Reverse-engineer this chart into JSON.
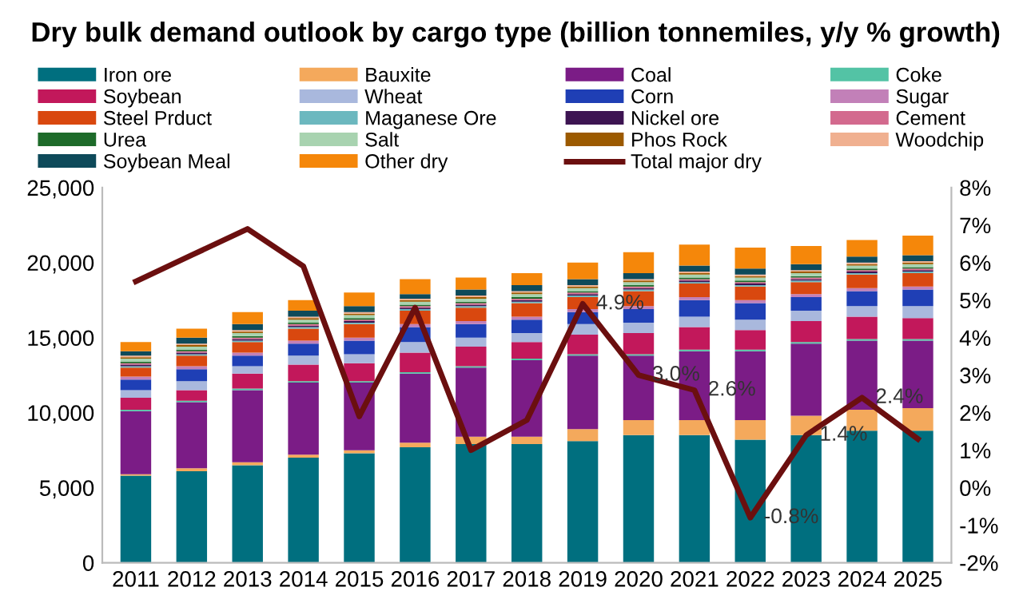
{
  "chart_data": {
    "type": "bar",
    "title": "Dry bulk demand outlook by cargo type (billion tonnemiles, y/y % growth)",
    "categories": [
      "2011",
      "2012",
      "2013",
      "2014",
      "2015",
      "2016",
      "2017",
      "2018",
      "2019",
      "2020",
      "2021",
      "2022",
      "2023",
      "2024",
      "2025"
    ],
    "stacked": true,
    "legend": "top",
    "grid": false,
    "ylim": [
      0,
      25000
    ],
    "yticks": [
      {
        "value": 0,
        "label": "0"
      },
      {
        "value": 5000,
        "label": "5,000"
      },
      {
        "value": 10000,
        "label": "10,000"
      },
      {
        "value": 15000,
        "label": "15,000"
      },
      {
        "value": 20000,
        "label": "20,000"
      },
      {
        "value": 25000,
        "label": "25,000"
      }
    ],
    "y2lim": [
      -2,
      8
    ],
    "y2ticks": [
      {
        "value": -2,
        "label": "-2%"
      },
      {
        "value": -1,
        "label": "-1%"
      },
      {
        "value": 0,
        "label": "0%"
      },
      {
        "value": 1,
        "label": "1%"
      },
      {
        "value": 2,
        "label": "2%"
      },
      {
        "value": 3,
        "label": "3%"
      },
      {
        "value": 4,
        "label": "4%"
      },
      {
        "value": 5,
        "label": "5%"
      },
      {
        "value": 6,
        "label": "6%"
      },
      {
        "value": 7,
        "label": "7%"
      },
      {
        "value": 8,
        "label": "8%"
      }
    ],
    "series": [
      {
        "name": "Iron ore",
        "color": "#006f7f",
        "values": [
          5800,
          6100,
          6500,
          7000,
          7300,
          7700,
          7900,
          7900,
          8100,
          8500,
          8500,
          8200,
          8500,
          8800,
          8800
        ]
      },
      {
        "name": "Bauxite",
        "color": "#f4a95c",
        "values": [
          100,
          200,
          200,
          200,
          200,
          300,
          500,
          500,
          800,
          1000,
          1000,
          1300,
          1300,
          1400,
          1500
        ]
      },
      {
        "name": "Coal",
        "color": "#7b1c86",
        "values": [
          4200,
          4400,
          4800,
          4800,
          4500,
          4600,
          4600,
          5100,
          4900,
          4300,
          4600,
          4600,
          4800,
          4600,
          4500
        ]
      },
      {
        "name": "Coke",
        "color": "#53c3a5",
        "values": [
          100,
          100,
          100,
          100,
          100,
          100,
          100,
          100,
          100,
          100,
          100,
          100,
          100,
          100,
          100
        ]
      },
      {
        "name": "Soybean",
        "color": "#c2185b",
        "values": [
          800,
          700,
          1000,
          1100,
          1200,
          1300,
          1300,
          1100,
          1300,
          1400,
          1500,
          1300,
          1400,
          1500,
          1400
        ]
      },
      {
        "name": "Wheat",
        "color": "#a9b8dd",
        "values": [
          500,
          600,
          500,
          600,
          600,
          700,
          600,
          600,
          700,
          700,
          700,
          700,
          700,
          700,
          800
        ]
      },
      {
        "name": "Corn",
        "color": "#1f3fb5",
        "values": [
          700,
          800,
          700,
          800,
          900,
          1000,
          900,
          900,
          800,
          900,
          1100,
          1100,
          900,
          1000,
          1100
        ]
      },
      {
        "name": "Sugar",
        "color": "#c280b8",
        "values": [
          200,
          200,
          200,
          200,
          200,
          200,
          200,
          200,
          200,
          200,
          200,
          200,
          200,
          200,
          200
        ]
      },
      {
        "name": "Steel Prduct",
        "color": "#d9480f",
        "values": [
          600,
          700,
          700,
          800,
          900,
          900,
          900,
          900,
          800,
          1000,
          900,
          900,
          800,
          900,
          900
        ]
      },
      {
        "name": "Maganese Ore",
        "color": "#6cb8bf",
        "values": [
          100,
          100,
          100,
          100,
          100,
          100,
          100,
          100,
          100,
          100,
          100,
          100,
          100,
          100,
          100
        ]
      },
      {
        "name": "Nickel ore",
        "color": "#3d1452",
        "values": [
          100,
          100,
          100,
          100,
          100,
          100,
          100,
          100,
          100,
          100,
          100,
          100,
          100,
          100,
          100
        ]
      },
      {
        "name": "Cement",
        "color": "#d36a8e",
        "values": [
          100,
          100,
          100,
          100,
          100,
          100,
          100,
          100,
          100,
          100,
          100,
          100,
          100,
          100,
          100
        ]
      },
      {
        "name": "Urea",
        "color": "#1e6b2a",
        "values": [
          100,
          100,
          100,
          100,
          100,
          100,
          100,
          100,
          100,
          100,
          100,
          100,
          100,
          100,
          100
        ]
      },
      {
        "name": "Salt",
        "color": "#a8d3b0",
        "values": [
          200,
          200,
          200,
          200,
          200,
          200,
          200,
          200,
          200,
          200,
          200,
          200,
          200,
          200,
          200
        ]
      },
      {
        "name": "Phos Rock",
        "color": "#9c5a00",
        "values": [
          100,
          100,
          100,
          100,
          100,
          100,
          100,
          100,
          100,
          100,
          100,
          100,
          100,
          100,
          100
        ]
      },
      {
        "name": "Woodchip",
        "color": "#f0b090",
        "values": [
          100,
          100,
          100,
          100,
          100,
          100,
          100,
          100,
          100,
          100,
          100,
          100,
          100,
          100,
          100
        ]
      },
      {
        "name": "Soybean Meal",
        "color": "#0e4a5a",
        "values": [
          300,
          400,
          400,
          400,
          400,
          300,
          400,
          400,
          400,
          400,
          400,
          400,
          400,
          400,
          400
        ]
      },
      {
        "name": "Other dry",
        "color": "#f5870a",
        "values": [
          600,
          600,
          800,
          700,
          900,
          1000,
          800,
          800,
          1100,
          1400,
          1400,
          1400,
          1200,
          1100,
          1300
        ]
      },
      {
        "name": "Total major dry",
        "type": "line",
        "axis": "y2",
        "color": "#6b0f0f",
        "marker": "none",
        "values": [
          5.5,
          6.2,
          6.9,
          5.9,
          1.9,
          4.8,
          1.0,
          1.8,
          4.9,
          3.0,
          2.6,
          -0.8,
          1.4,
          2.4,
          1.3
        ],
        "value_labels": [
          null,
          null,
          null,
          null,
          null,
          null,
          null,
          null,
          "4.9%",
          "3.0%",
          "2.6%",
          "-0.8%",
          "1.4%",
          "2.4%",
          null
        ]
      }
    ]
  }
}
